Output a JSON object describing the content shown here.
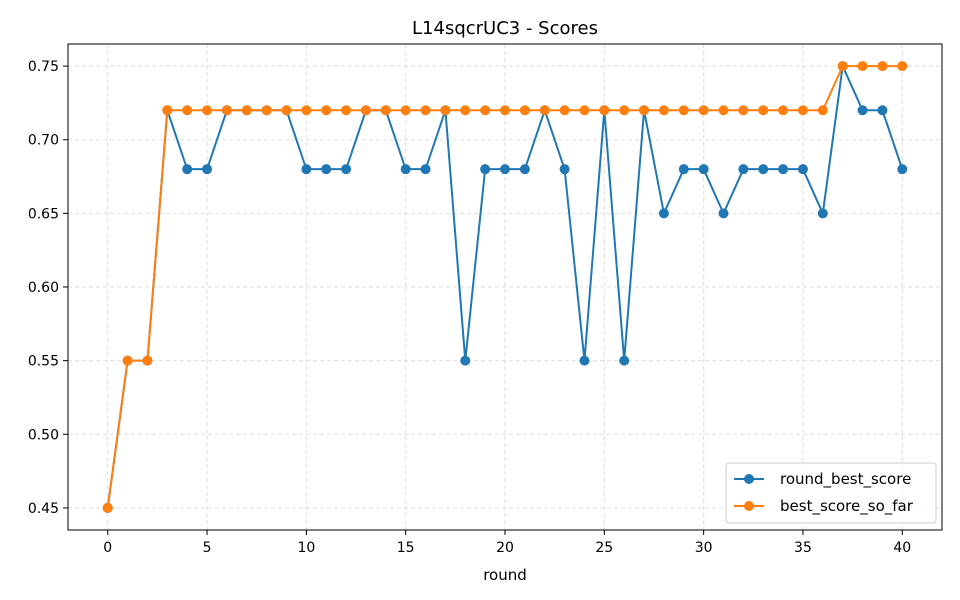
{
  "chart_data": {
    "type": "line",
    "title": "L14sqcrUC3 - Scores",
    "xlabel": "round",
    "ylabel": "",
    "xlim": [
      -2,
      42
    ],
    "ylim": [
      0.435,
      0.765
    ],
    "xticks": [
      0,
      5,
      10,
      15,
      20,
      25,
      30,
      35,
      40
    ],
    "yticks": [
      0.45,
      0.5,
      0.55,
      0.6,
      0.65,
      0.7,
      0.75
    ],
    "grid": true,
    "legend_position": "bottom-right",
    "x": [
      0,
      1,
      2,
      3,
      4,
      5,
      6,
      7,
      8,
      9,
      10,
      11,
      12,
      13,
      14,
      15,
      16,
      17,
      18,
      19,
      20,
      21,
      22,
      23,
      24,
      25,
      26,
      27,
      28,
      29,
      30,
      31,
      32,
      33,
      34,
      35,
      36,
      37,
      38,
      39,
      40
    ],
    "series": [
      {
        "name": "round_best_score",
        "color": "#1f77b4",
        "values": [
          0.45,
          0.55,
          0.55,
          0.72,
          0.68,
          0.68,
          0.72,
          0.72,
          0.72,
          0.72,
          0.68,
          0.68,
          0.68,
          0.72,
          0.72,
          0.68,
          0.68,
          0.72,
          0.55,
          0.68,
          0.68,
          0.68,
          0.72,
          0.68,
          0.55,
          0.72,
          0.55,
          0.72,
          0.65,
          0.68,
          0.68,
          0.65,
          0.68,
          0.68,
          0.68,
          0.68,
          0.65,
          0.75,
          0.72,
          0.72,
          0.68
        ]
      },
      {
        "name": "best_score_so_far",
        "color": "#ff7f0e",
        "values": [
          0.45,
          0.55,
          0.55,
          0.72,
          0.72,
          0.72,
          0.72,
          0.72,
          0.72,
          0.72,
          0.72,
          0.72,
          0.72,
          0.72,
          0.72,
          0.72,
          0.72,
          0.72,
          0.72,
          0.72,
          0.72,
          0.72,
          0.72,
          0.72,
          0.72,
          0.72,
          0.72,
          0.72,
          0.72,
          0.72,
          0.72,
          0.72,
          0.72,
          0.72,
          0.72,
          0.72,
          0.72,
          0.75,
          0.75,
          0.75,
          0.75
        ]
      }
    ]
  }
}
